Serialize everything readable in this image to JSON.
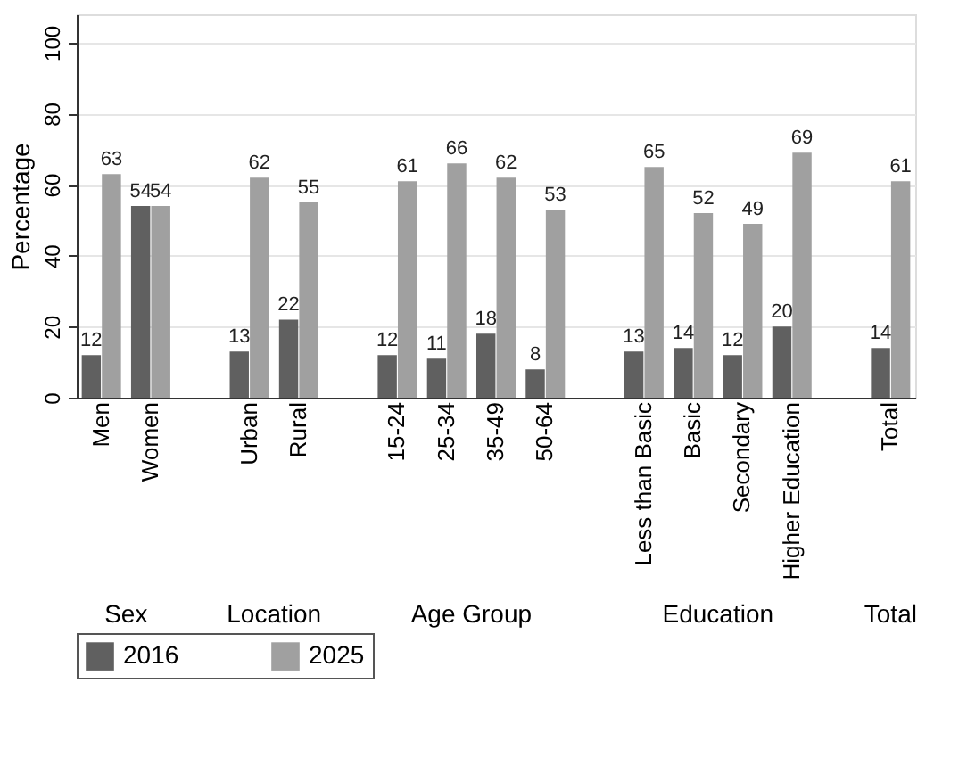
{
  "chart_data": {
    "type": "bar",
    "ylabel": "Percentage",
    "categories": [
      "Men",
      "Women",
      null,
      "Urban",
      "Rural",
      null,
      "15-24",
      "25-34",
      "35-49",
      "50-64",
      null,
      "Less than Basic",
      "Basic",
      "Secondary",
      "Higher Education",
      null,
      "Total"
    ],
    "series": [
      {
        "name": "2016",
        "color": "#606060",
        "values": [
          12,
          54,
          null,
          13,
          22,
          null,
          12,
          11,
          18,
          8,
          null,
          13,
          14,
          12,
          20,
          null,
          14
        ]
      },
      {
        "name": "2025",
        "color": "#a0a0a0",
        "values": [
          63,
          54,
          null,
          62,
          55,
          null,
          61,
          66,
          62,
          53,
          null,
          65,
          52,
          49,
          69,
          null,
          61
        ]
      }
    ],
    "annotations": [
      "Sex",
      "Location",
      "Age Group",
      "Education",
      "Total"
    ],
    "ylim": [
      0,
      108
    ],
    "yticks": [
      0,
      20,
      40,
      60,
      80,
      100
    ],
    "grid": "y",
    "legend": "bottom",
    "data_labels": true
  }
}
